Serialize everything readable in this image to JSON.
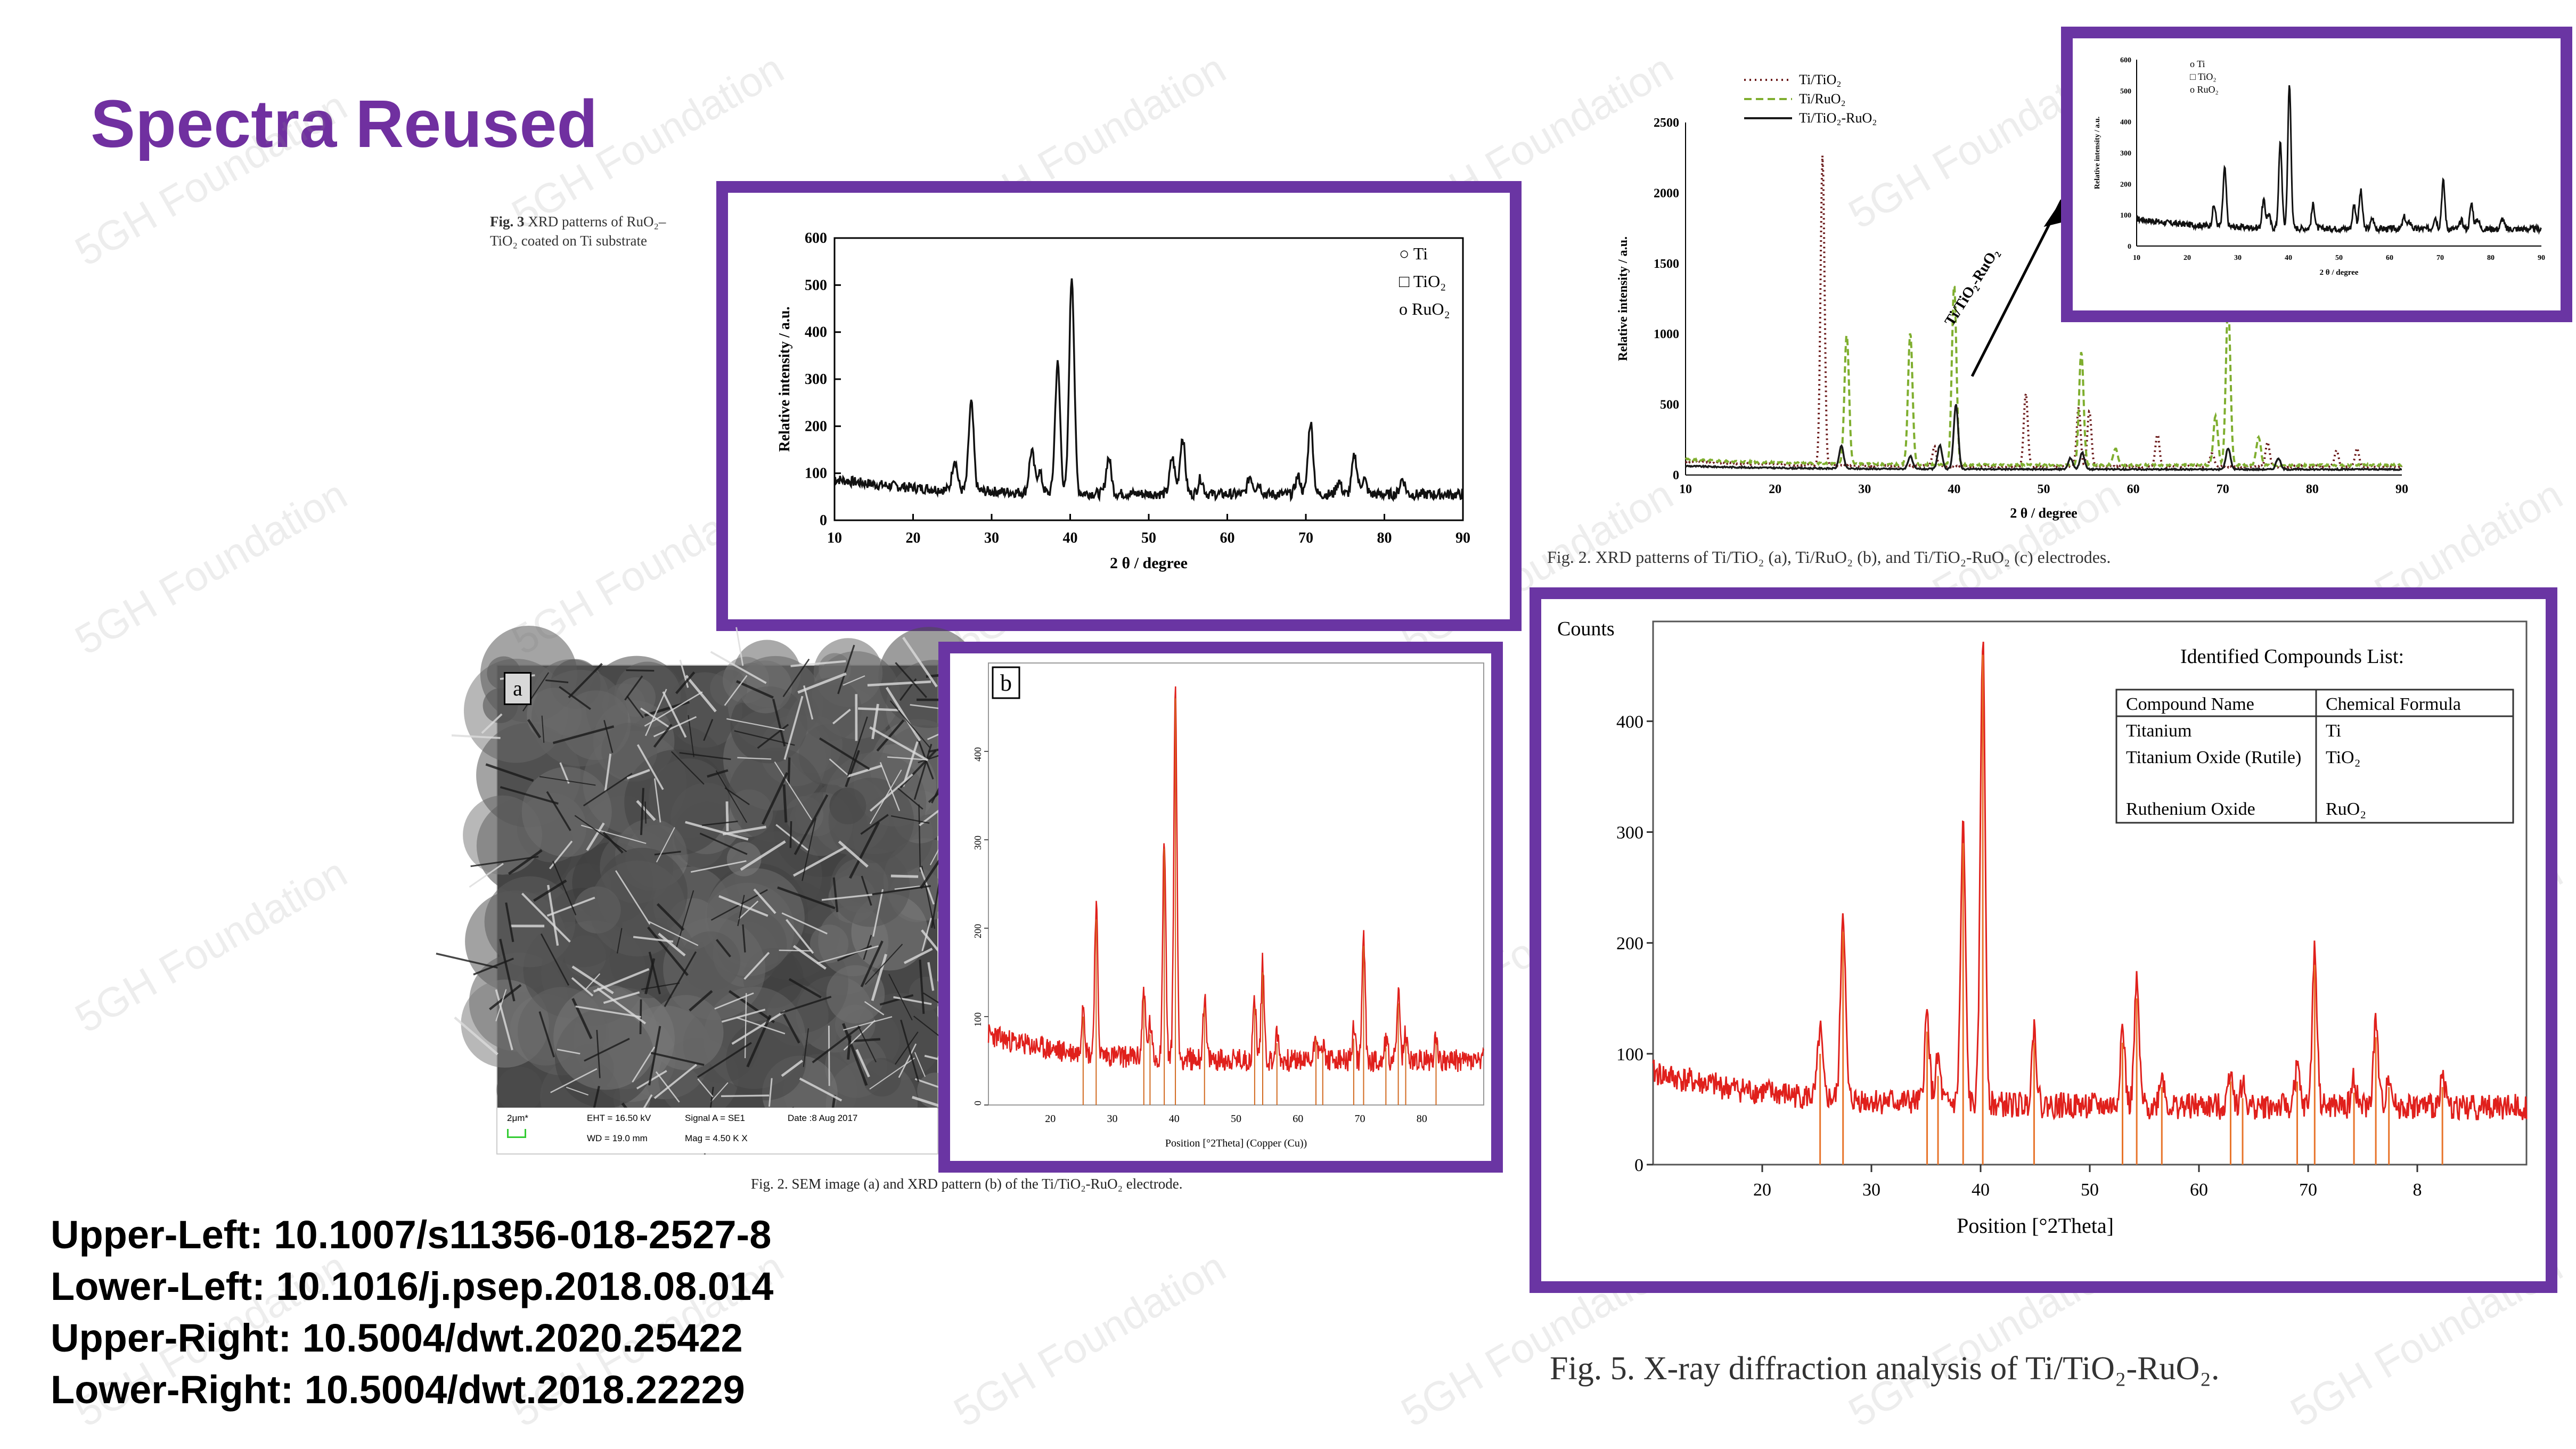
{
  "slide_title": "Spectra Reused",
  "watermark": "5GH Foundation",
  "colors": {
    "accent": "#6a35a3",
    "title": "#7030a0",
    "red_trace": "#e0201c",
    "dark_trace": "#1a1a1a",
    "green_trace": "#7fae2f",
    "maroon_trace": "#6b1a1a"
  },
  "upper_left": {
    "caption_label": "Fig. 3",
    "caption_line1": "XRD patterns of RuO₂–",
    "caption_line2": "TiO₂ coated on Ti substrate",
    "ylabel": "Relative intensity / a.u.",
    "xlabel": "2 θ / degree",
    "x_ticks": [
      "10",
      "20",
      "30",
      "40",
      "50",
      "60",
      "70",
      "80",
      "90"
    ],
    "y_ticks": [
      "0",
      "100",
      "200",
      "300",
      "400",
      "500",
      "600"
    ],
    "legend": [
      {
        "marker": "○",
        "label": "Ti"
      },
      {
        "marker": "□",
        "label": "TiO₂"
      },
      {
        "marker": "o",
        "label": "RuO₂"
      }
    ]
  },
  "lower_left": {
    "panel_a_label": "a",
    "panel_b_label": "b",
    "sem_info": {
      "scale": "2μm*",
      "eht": "EHT = 16.50 kV",
      "wd": "WD = 19.0 mm",
      "signal": "Signal A = SE1",
      "mag": "Mag = 4.50 K X",
      "date": "Date :8 Aug 2017"
    },
    "xlabel": "Position [°2Theta] (Copper (Cu))",
    "x_ticks": [
      "20",
      "30",
      "40",
      "50",
      "60",
      "70",
      "80"
    ],
    "y_ticks": [
      "0",
      "100",
      "200",
      "300",
      "400"
    ],
    "caption": "Fig. 2.  SEM image (a) and XRD pattern (b) of the Ti/TiO₂-RuO₂ electrode."
  },
  "upper_right": {
    "legend": [
      {
        "style": "dotted",
        "label": "Ti/TiO₂"
      },
      {
        "style": "dashed",
        "label": "Ti/RuO₂"
      },
      {
        "style": "solid",
        "label": "Ti/TiO₂-RuO₂"
      }
    ],
    "ylabel": "Relative intensity / a.u.",
    "xlabel": "2 θ / degree",
    "x_ticks": [
      "10",
      "20",
      "30",
      "40",
      "50",
      "60",
      "70",
      "80",
      "90"
    ],
    "y_ticks": [
      "0",
      "500",
      "1000",
      "1500",
      "2000",
      "2500"
    ],
    "arrow_label": "Ti/TiO₂-RuO₂",
    "inset": {
      "legend": [
        "o Ti",
        "□ TiO₂",
        "o RuO₂"
      ],
      "ylabel": "Relative intensity / a.u.",
      "xlabel": "2 θ / degree",
      "x_ticks": [
        "10",
        "20",
        "30",
        "40",
        "50",
        "60",
        "70",
        "80",
        "90"
      ],
      "y_ticks": [
        "0",
        "100",
        "200",
        "300",
        "400",
        "500",
        "600"
      ]
    },
    "caption": "Fig. 2. XRD patterns of Ti/TiO₂ (a), Ti/RuO₂ (b), and Ti/TiO₂-RuO₂ (c) electrodes."
  },
  "lower_right": {
    "ylabel": "Counts",
    "xlabel": "Position [°2Theta]",
    "x_ticks": [
      "20",
      "30",
      "40",
      "50",
      "60",
      "70",
      "8"
    ],
    "y_ticks": [
      "0",
      "100",
      "200",
      "300",
      "400"
    ],
    "table_title": "Identified Compounds List:",
    "table_headers": [
      "Compound Name",
      "Chemical Formula"
    ],
    "table_rows": [
      [
        "Titanium",
        "Ti"
      ],
      [
        "Titanium Oxide (Rutile)",
        "TiO₂"
      ],
      [
        "Ruthenium Oxide",
        "RuO₂"
      ]
    ],
    "caption": "Fig. 5. X-ray diffraction analysis of Ti/TiO₂-RuO₂."
  },
  "dois": [
    "Upper-Left: 10.1007/s11356-018-2527-8",
    "Lower-Left: 10.1016/j.psep.2018.08.014",
    "Upper-Right: 10.5004/dwt.2020.25422",
    "Lower-Right: 10.5004/dwt.2018.22229"
  ]
}
